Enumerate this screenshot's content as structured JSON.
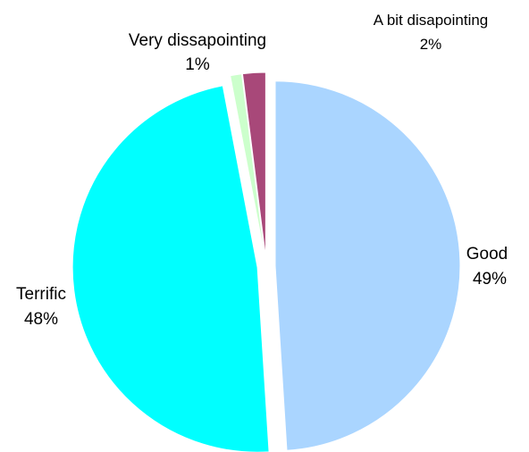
{
  "chart_data": {
    "type": "pie",
    "title": "",
    "legend": "none",
    "slices": [
      {
        "name": "Good",
        "value": 49,
        "label": "49%",
        "color": "#AAD5FF",
        "exploded": true
      },
      {
        "name": "Terrific",
        "value": 48,
        "label": "48%",
        "color": "#00FFFF",
        "exploded": true
      },
      {
        "name": "Very dissapointing",
        "value": 1,
        "label": "1%",
        "color": "#CCFFCC",
        "exploded": true
      },
      {
        "name": "A bit disapointing",
        "value": 2,
        "label": "2%",
        "color": "#A84879",
        "exploded": true
      }
    ]
  }
}
